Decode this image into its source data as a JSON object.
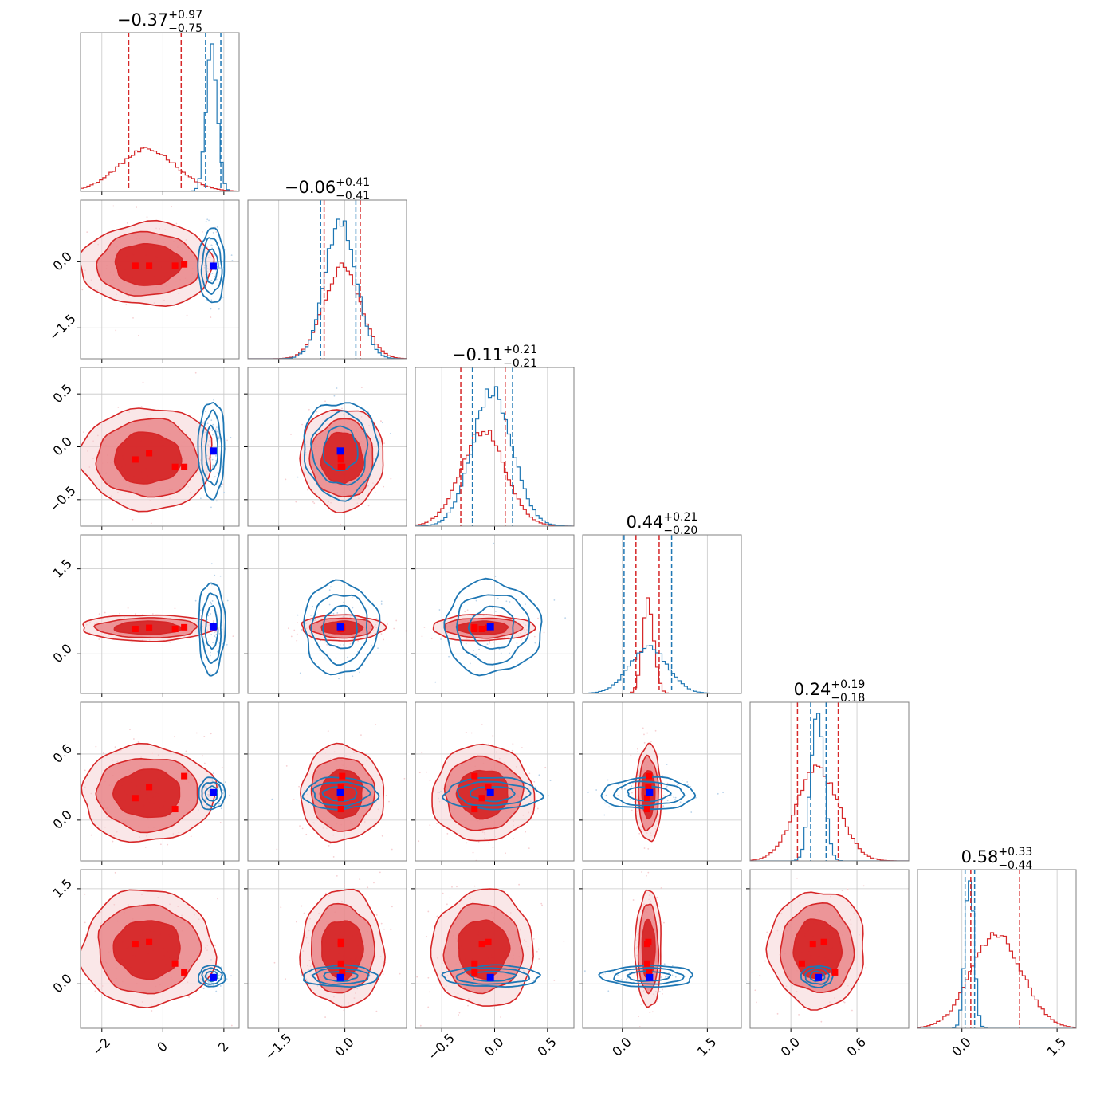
{
  "chart_data": {
    "type": "corner",
    "grid": true,
    "n_params": 6,
    "colors": {
      "red": "#d62728",
      "red_mid": "#e9868a",
      "red_light": "#f6cfd2",
      "blue": "#1f77b4",
      "blue_marker": "#0000ff",
      "red_marker": "#ff0000"
    },
    "params": [
      {
        "range": [
          -2.7,
          2.5
        ],
        "ticks": [
          -2,
          0,
          2
        ],
        "tick_labels": [
          "−2",
          "0",
          "2"
        ],
        "title": {
          "median": "−0.37",
          "plus": "+0.97",
          "minus": "−0.75"
        }
      },
      {
        "range": [
          -2.2,
          1.4
        ],
        "ticks": [
          -1.5,
          0.0
        ],
        "tick_labels": [
          "−1.5",
          "0.0"
        ],
        "title": {
          "median": "−0.06",
          "plus": "+0.41",
          "minus": "−0.41"
        }
      },
      {
        "range": [
          -0.75,
          0.75
        ],
        "ticks": [
          -0.5,
          0.0,
          0.5
        ],
        "tick_labels": [
          "−0.5",
          "0.0",
          "0.5"
        ],
        "title": {
          "median": "−0.11",
          "plus": "+0.21",
          "minus": "−0.21"
        }
      },
      {
        "range": [
          -0.7,
          2.1
        ],
        "ticks": [
          0.0,
          1.5
        ],
        "tick_labels": [
          "0.0",
          "1.5"
        ],
        "title": {
          "median": "0.44",
          "plus": "+0.21",
          "minus": "−0.20"
        }
      },
      {
        "range": [
          -0.37,
          1.07
        ],
        "ticks": [
          0.0,
          0.6
        ],
        "tick_labels": [
          "0.0",
          "0.6"
        ],
        "title": {
          "median": "0.24",
          "plus": "+0.19",
          "minus": "−0.18"
        }
      },
      {
        "range": [
          -0.7,
          1.8
        ],
        "ticks": [
          0.0,
          1.5
        ],
        "tick_labels": [
          "0.0",
          "1.5"
        ],
        "title": {
          "median": "0.58",
          "plus": "+0.33",
          "minus": "−0.44"
        }
      }
    ],
    "red_dist": {
      "mean": [
        -0.5,
        -0.06,
        -0.11,
        0.46,
        0.24,
        0.55
      ],
      "sd": [
        0.95,
        0.41,
        0.21,
        0.1,
        0.19,
        0.4
      ],
      "quantiles": [
        [
          -1.12,
          0.6
        ],
        [
          -0.47,
          0.35
        ],
        [
          -0.32,
          0.1
        ],
        [
          0.24,
          0.65
        ],
        [
          0.06,
          0.43
        ],
        [
          0.14,
          0.91
        ]
      ]
    },
    "blue_dist": {
      "mean": [
        1.6,
        -0.1,
        -0.02,
        0.46,
        0.24,
        0.12
      ],
      "sd": [
        0.18,
        0.35,
        0.19,
        0.34,
        0.06,
        0.07
      ],
      "quantiles": [
        [
          1.4,
          1.9
        ],
        [
          -0.55,
          0.25
        ],
        [
          -0.21,
          0.17
        ],
        [
          0.03,
          0.87
        ],
        [
          0.18,
          0.32
        ],
        [
          0.05,
          0.2
        ]
      ]
    },
    "blue_marker": [
      1.65,
      -0.1,
      -0.04,
      0.48,
      0.25,
      0.1
    ],
    "red_markers": [
      [
        -0.9,
        -0.09,
        -0.12,
        0.44,
        0.2,
        0.63
      ],
      [
        -0.45,
        -0.09,
        -0.06,
        0.46,
        0.3,
        0.66
      ],
      [
        0.4,
        -0.09,
        -0.19,
        0.44,
        0.1,
        0.32
      ],
      [
        0.7,
        -0.06,
        -0.19,
        0.47,
        0.4,
        0.18
      ]
    ]
  }
}
